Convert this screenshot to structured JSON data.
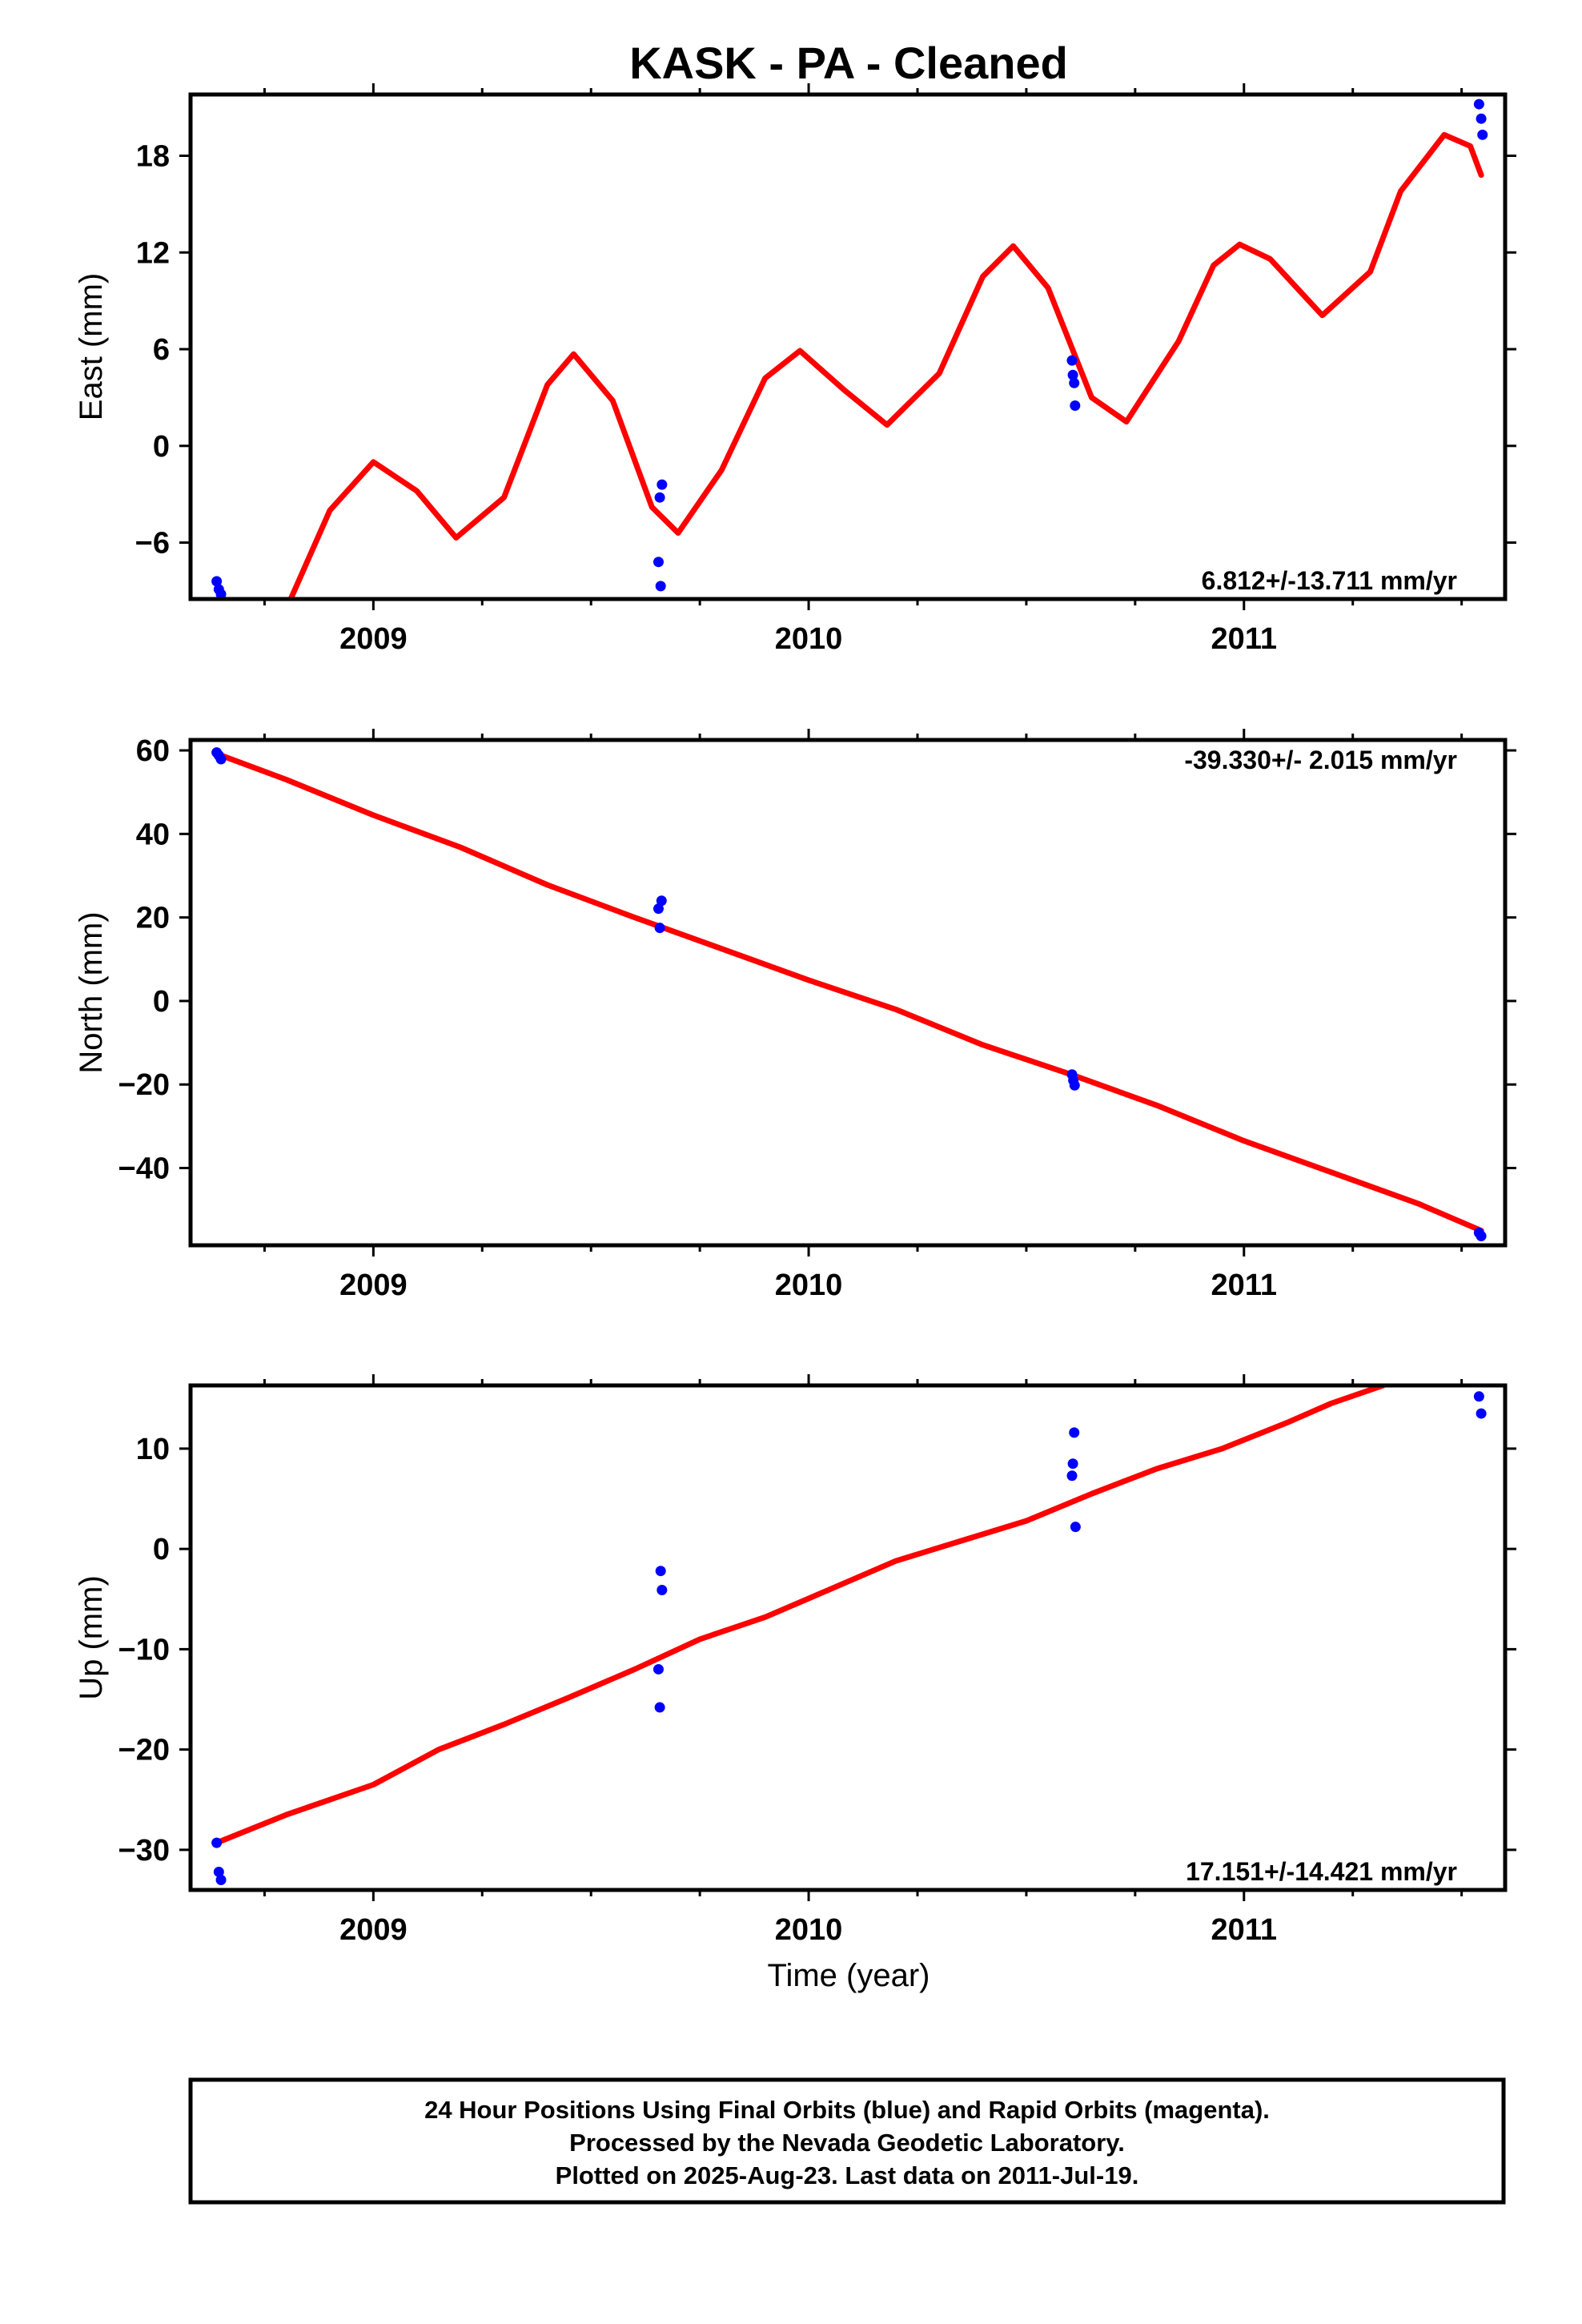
{
  "title": "KASK  - PA - Cleaned",
  "xaxis_label": "Time (year)",
  "footer": {
    "line1": "24 Hour Positions Using Final Orbits (blue) and Rapid Orbits (magenta).",
    "line2": "Processed by the Nevada Geodetic Laboratory.",
    "line3": "Plotted on 2025-Aug-23. Last data on 2011-Jul-19."
  },
  "colors": {
    "data": "#0000ff",
    "fit": "#ff0000",
    "frame": "#000000"
  },
  "chart_data": [
    {
      "type": "scatter",
      "component": "East",
      "ylabel": "East (mm)",
      "rate_label": "6.812+/-13.711 mm/yr",
      "rate_position": "bottom-right",
      "xlim": [
        2008.58,
        2011.6
      ],
      "ylim": [
        -9.5,
        21.8
      ],
      "yticks": [
        -6,
        0,
        6,
        12,
        18
      ],
      "xticks": [
        2009,
        2010,
        2011
      ],
      "points": [
        {
          "x": 2008.64,
          "y": -8.4
        },
        {
          "x": 2008.645,
          "y": -8.9
        },
        {
          "x": 2008.65,
          "y": -9.2
        },
        {
          "x": 2009.655,
          "y": -7.2
        },
        {
          "x": 2009.658,
          "y": -3.2
        },
        {
          "x": 2009.66,
          "y": -8.7
        },
        {
          "x": 2009.663,
          "y": -2.4
        },
        {
          "x": 2010.605,
          "y": 5.3
        },
        {
          "x": 2010.607,
          "y": 4.4
        },
        {
          "x": 2010.61,
          "y": 3.9
        },
        {
          "x": 2010.612,
          "y": 2.5
        },
        {
          "x": 2011.54,
          "y": 21.2
        },
        {
          "x": 2011.545,
          "y": 20.3
        },
        {
          "x": 2011.548,
          "y": 19.3
        }
      ],
      "fit_line": [
        {
          "x": 2008.81,
          "y": -9.5
        },
        {
          "x": 2008.9,
          "y": -4.0
        },
        {
          "x": 2009.0,
          "y": -1.0
        },
        {
          "x": 2009.1,
          "y": -2.8
        },
        {
          "x": 2009.19,
          "y": -5.7
        },
        {
          "x": 2009.3,
          "y": -3.2
        },
        {
          "x": 2009.4,
          "y": 3.8
        },
        {
          "x": 2009.46,
          "y": 5.7
        },
        {
          "x": 2009.55,
          "y": 2.8
        },
        {
          "x": 2009.64,
          "y": -3.8
        },
        {
          "x": 2009.7,
          "y": -5.4
        },
        {
          "x": 2009.8,
          "y": -1.5
        },
        {
          "x": 2009.9,
          "y": 4.2
        },
        {
          "x": 2009.98,
          "y": 5.9
        },
        {
          "x": 2010.08,
          "y": 3.5
        },
        {
          "x": 2010.18,
          "y": 1.3
        },
        {
          "x": 2010.3,
          "y": 4.5
        },
        {
          "x": 2010.4,
          "y": 10.5
        },
        {
          "x": 2010.47,
          "y": 12.4
        },
        {
          "x": 2010.55,
          "y": 9.8
        },
        {
          "x": 2010.65,
          "y": 3.0
        },
        {
          "x": 2010.73,
          "y": 1.5
        },
        {
          "x": 2010.85,
          "y": 6.5
        },
        {
          "x": 2010.93,
          "y": 11.2
        },
        {
          "x": 2010.99,
          "y": 12.5
        },
        {
          "x": 2011.06,
          "y": 11.6
        },
        {
          "x": 2011.18,
          "y": 8.1
        },
        {
          "x": 2011.29,
          "y": 10.8
        },
        {
          "x": 2011.36,
          "y": 15.8
        },
        {
          "x": 2011.46,
          "y": 19.3
        },
        {
          "x": 2011.52,
          "y": 18.6
        },
        {
          "x": 2011.545,
          "y": 16.8
        }
      ]
    },
    {
      "type": "scatter",
      "component": "North",
      "ylabel": "North (mm)",
      "rate_label": "-39.330+/- 2.015 mm/yr",
      "rate_position": "top-right",
      "xlim": [
        2008.58,
        2011.6
      ],
      "ylim": [
        -58.5,
        62.5
      ],
      "yticks": [
        -40,
        -20,
        0,
        20,
        40,
        60
      ],
      "xticks": [
        2009,
        2010,
        2011
      ],
      "points": [
        {
          "x": 2008.64,
          "y": 59.5
        },
        {
          "x": 2008.645,
          "y": 58.8
        },
        {
          "x": 2008.65,
          "y": 57.9
        },
        {
          "x": 2009.655,
          "y": 22.1
        },
        {
          "x": 2009.658,
          "y": 17.5
        },
        {
          "x": 2009.662,
          "y": 24.0
        },
        {
          "x": 2010.605,
          "y": -17.6
        },
        {
          "x": 2010.608,
          "y": -19.0
        },
        {
          "x": 2010.611,
          "y": -20.2
        },
        {
          "x": 2011.54,
          "y": -55.5
        },
        {
          "x": 2011.545,
          "y": -56.3
        }
      ],
      "fit_line": [
        {
          "x": 2008.64,
          "y": 59.2
        },
        {
          "x": 2008.8,
          "y": 53.0
        },
        {
          "x": 2009.0,
          "y": 44.5
        },
        {
          "x": 2009.2,
          "y": 36.8
        },
        {
          "x": 2009.4,
          "y": 27.8
        },
        {
          "x": 2009.6,
          "y": 20.0
        },
        {
          "x": 2009.8,
          "y": 12.5
        },
        {
          "x": 2010.0,
          "y": 5.0
        },
        {
          "x": 2010.2,
          "y": -2.0
        },
        {
          "x": 2010.4,
          "y": -10.5
        },
        {
          "x": 2010.6,
          "y": -17.5
        },
        {
          "x": 2010.8,
          "y": -25.0
        },
        {
          "x": 2011.0,
          "y": -33.5
        },
        {
          "x": 2011.2,
          "y": -41.0
        },
        {
          "x": 2011.4,
          "y": -48.5
        },
        {
          "x": 2011.545,
          "y": -55.0
        }
      ]
    },
    {
      "type": "scatter",
      "component": "Up",
      "ylabel": "Up (mm)",
      "rate_label": "17.151+/-14.421 mm/yr",
      "rate_position": "bottom-right",
      "xlim": [
        2008.58,
        2011.6
      ],
      "ylim": [
        -34.0,
        16.3
      ],
      "yticks": [
        -30,
        -20,
        -10,
        0,
        10
      ],
      "xticks": [
        2009,
        2010,
        2011
      ],
      "points": [
        {
          "x": 2008.64,
          "y": -29.3
        },
        {
          "x": 2008.645,
          "y": -32.2
        },
        {
          "x": 2008.65,
          "y": -33.0
        },
        {
          "x": 2009.655,
          "y": -12.0
        },
        {
          "x": 2009.658,
          "y": -15.8
        },
        {
          "x": 2009.66,
          "y": -2.2
        },
        {
          "x": 2009.663,
          "y": -4.1
        },
        {
          "x": 2010.605,
          "y": 7.3
        },
        {
          "x": 2010.607,
          "y": 8.5
        },
        {
          "x": 2010.61,
          "y": 11.6
        },
        {
          "x": 2010.613,
          "y": 2.2
        },
        {
          "x": 2011.54,
          "y": 15.2
        },
        {
          "x": 2011.545,
          "y": 13.5
        }
      ],
      "fit_line": [
        {
          "x": 2008.64,
          "y": -29.3
        },
        {
          "x": 2008.8,
          "y": -26.5
        },
        {
          "x": 2009.0,
          "y": -23.5
        },
        {
          "x": 2009.15,
          "y": -20.0
        },
        {
          "x": 2009.3,
          "y": -17.5
        },
        {
          "x": 2009.45,
          "y": -14.8
        },
        {
          "x": 2009.6,
          "y": -12.0
        },
        {
          "x": 2009.75,
          "y": -9.0
        },
        {
          "x": 2009.9,
          "y": -6.8
        },
        {
          "x": 2010.05,
          "y": -4.0
        },
        {
          "x": 2010.2,
          "y": -1.2
        },
        {
          "x": 2010.35,
          "y": 0.8
        },
        {
          "x": 2010.5,
          "y": 2.8
        },
        {
          "x": 2010.65,
          "y": 5.5
        },
        {
          "x": 2010.8,
          "y": 8.0
        },
        {
          "x": 2010.95,
          "y": 10.0
        },
        {
          "x": 2011.1,
          "y": 12.6
        },
        {
          "x": 2011.2,
          "y": 14.5
        },
        {
          "x": 2011.32,
          "y": 16.3
        }
      ]
    }
  ]
}
